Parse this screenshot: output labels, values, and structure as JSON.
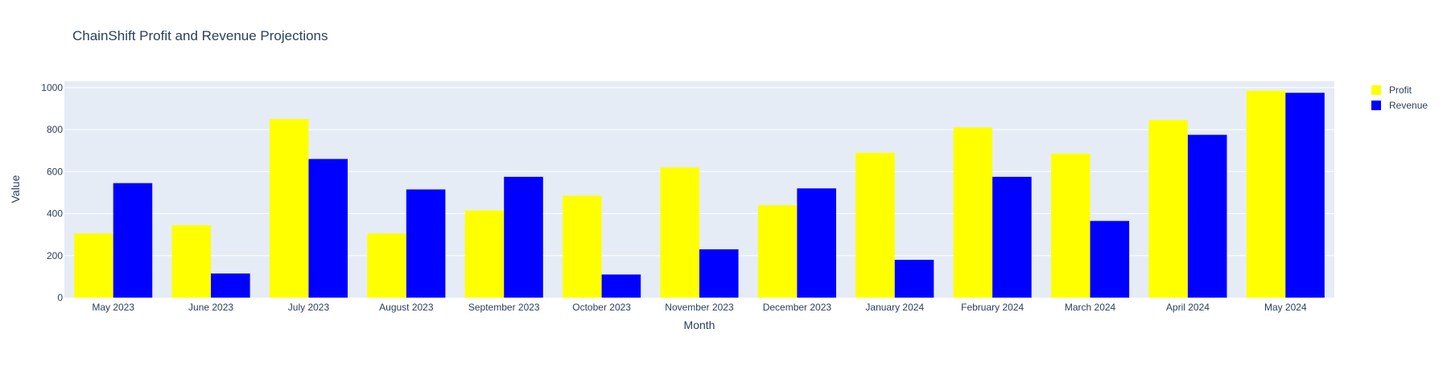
{
  "chart_data": {
    "type": "bar",
    "title": "ChainShift Profit and Revenue Projections",
    "xlabel": "Month",
    "ylabel": "Value",
    "ylim": [
      0,
      1030
    ],
    "yticks": [
      0,
      200,
      400,
      600,
      800,
      1000
    ],
    "grid": true,
    "legend_position": "top-right",
    "categories": [
      "May 2023",
      "June 2023",
      "July 2023",
      "August 2023",
      "September 2023",
      "October 2023",
      "November 2023",
      "December 2023",
      "January 2024",
      "February 2024",
      "March 2024",
      "April 2024",
      "May 2024"
    ],
    "series": [
      {
        "name": "Profit",
        "color": "#ffff00",
        "values": [
          305,
          345,
          850,
          305,
          415,
          485,
          620,
          440,
          690,
          810,
          685,
          845,
          985
        ]
      },
      {
        "name": "Revenue",
        "color": "#0000ff",
        "values": [
          545,
          115,
          660,
          515,
          575,
          110,
          230,
          520,
          180,
          575,
          365,
          775,
          975
        ]
      }
    ],
    "colors": {
      "plot_background": "#e5ecf6",
      "gridline": "#ffffff",
      "text": "#2a3f5f"
    }
  }
}
